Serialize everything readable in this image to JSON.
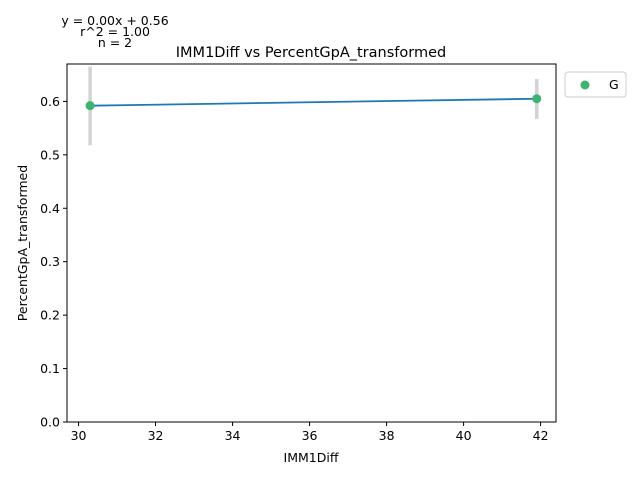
{
  "chart_data": {
    "type": "scatter",
    "title": "IMM1Diff vs PercentGpA_transformed",
    "xlabel": "IMM1Diff",
    "ylabel": "PercentGpA_transformed",
    "xlim": [
      29.7,
      42.4
    ],
    "ylim": [
      0.0,
      0.67
    ],
    "xticks": [
      30,
      32,
      34,
      36,
      38,
      40,
      42
    ],
    "yticks": [
      0.0,
      0.1,
      0.2,
      0.3,
      0.4,
      0.5,
      0.6
    ],
    "ytick_labels": [
      "0.0",
      "0.1",
      "0.2",
      "0.3",
      "0.4",
      "0.5",
      "0.6"
    ],
    "grid": false,
    "legend_position": "outside-top-right",
    "series": [
      {
        "name": "G",
        "color": "#3cb371",
        "points": [
          {
            "x": 30.3,
            "y": 0.592,
            "err_low": 0.518,
            "err_high": 0.665
          },
          {
            "x": 41.9,
            "y": 0.605,
            "err_low": 0.567,
            "err_high": 0.642
          }
        ]
      }
    ],
    "errorbar_color": "#d3d3d3",
    "fit_line": {
      "color": "#1f77b4",
      "x": [
        30.3,
        41.9
      ],
      "y": [
        0.592,
        0.605
      ]
    },
    "annotations": [
      "y = 0.00x + 0.56",
      "r^2 = 1.00",
      "n = 2"
    ]
  }
}
